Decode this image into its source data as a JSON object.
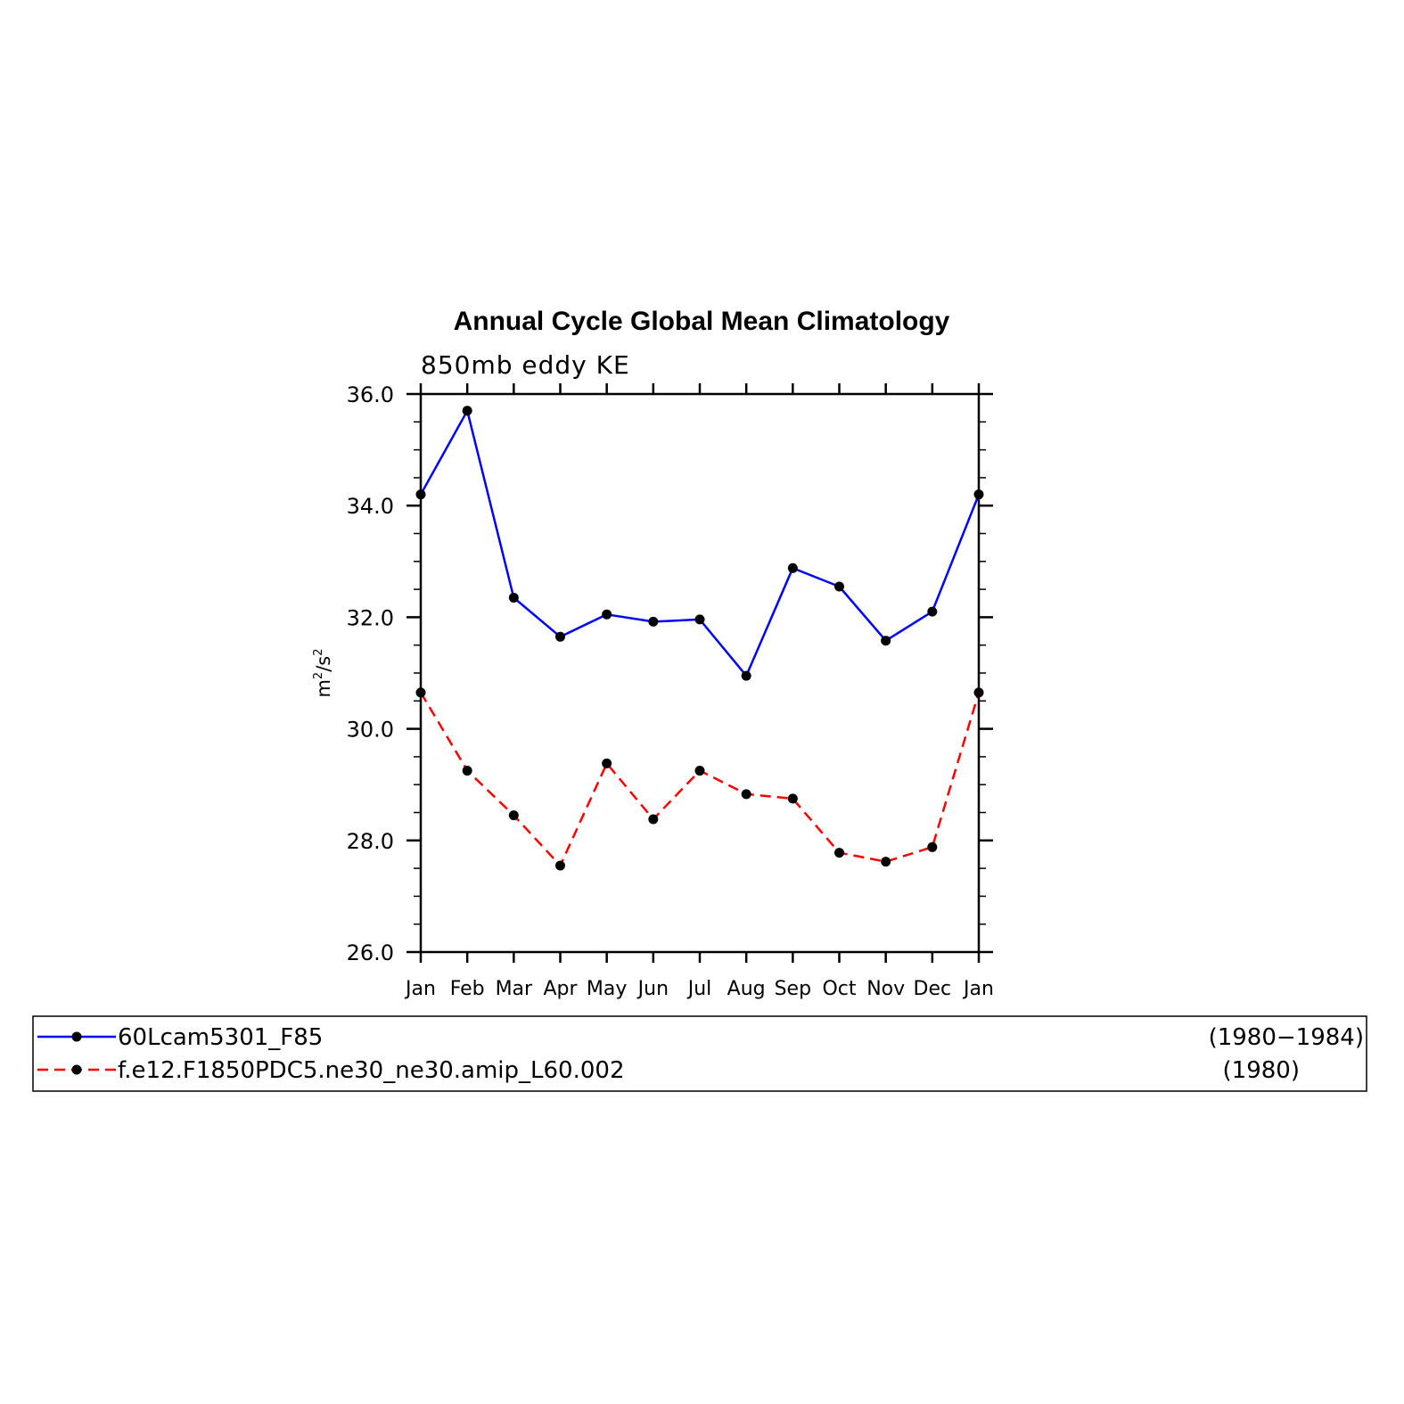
{
  "chart_data": {
    "type": "line",
    "title": "Annual Cycle Global Mean Climatology",
    "subtitle": "850mb eddy KE",
    "ylabel": "m²/s²",
    "ylabel_base": "m",
    "ylabel_unit2": "s",
    "ylabel_exp": "2",
    "xlabel": "",
    "categories": [
      "Jan",
      "Feb",
      "Mar",
      "Apr",
      "May",
      "Jun",
      "Jul",
      "Aug",
      "Sep",
      "Oct",
      "Nov",
      "Dec",
      "Jan"
    ],
    "ylim": [
      26.0,
      36.0
    ],
    "yticks": [
      "26.0",
      "28.0",
      "30.0",
      "32.0",
      "34.0",
      "36.0"
    ],
    "grid": false,
    "legend_position": "bottom",
    "series": [
      {
        "name": "60Lcam5301_F85",
        "period": "(1980−1984)",
        "color": "#0000ff",
        "line_style": "solid",
        "marker": "filled-circle",
        "values": [
          34.2,
          35.7,
          32.35,
          31.65,
          32.05,
          31.92,
          31.96,
          30.95,
          32.88,
          32.55,
          31.58,
          32.1,
          34.2
        ]
      },
      {
        "name": "f.e12.F1850PDC5.ne30_ne30.amip_L60.002",
        "period": "(1980)",
        "color": "#ff0000",
        "line_style": "dashed",
        "marker": "filled-circle",
        "values": [
          30.65,
          29.25,
          28.45,
          27.55,
          29.38,
          28.38,
          29.25,
          28.83,
          28.75,
          27.78,
          27.62,
          27.88,
          30.65
        ]
      }
    ]
  }
}
